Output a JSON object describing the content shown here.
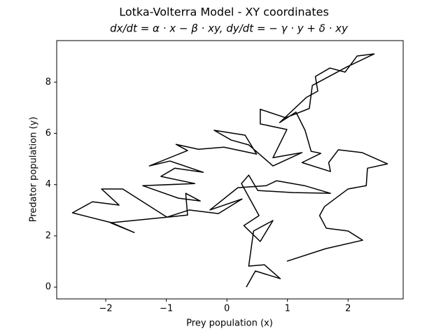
{
  "chart_data": {
    "type": "line",
    "title": "Lotka-Volterra Model - XY coordinates",
    "subtitle": "dx/dt = α · x − β · xy,      dy/dt = − γ · y + δ · xy",
    "x_label": "Prey population (x)",
    "y_label": "Predator population (y)",
    "color": "#000000",
    "x": [
      0.99,
      1.63,
      2.24,
      2.0,
      1.64,
      1.53,
      1.61,
      2.0,
      2.3,
      2.32,
      2.65,
      2.23,
      1.84,
      1.68,
      1.71,
      1.24,
      1.55,
      1.39,
      1.29,
      1.14,
      0.87,
      1.31,
      1.5,
      1.46,
      1.7,
      1.95,
      2.15,
      2.43,
      1.97,
      1.41,
      1.36,
      0.97,
      0.55,
      0.55,
      0.99,
      0.76,
      1.24,
      0.76,
      0.36,
      0.07,
      -0.21,
      0.3,
      0.49,
      -0.05,
      -0.47,
      -0.84,
      -0.65,
      -1.28,
      -0.94,
      -0.39,
      -0.86,
      -1.09,
      -0.53,
      -1.39,
      -0.8,
      -0.44,
      -0.68,
      -0.65,
      -0.99,
      -1.72,
      -2.07,
      -1.78,
      -2.22,
      -2.55,
      -1.9,
      -1.53,
      -1.92,
      -0.99,
      -0.62,
      -0.14,
      0.25,
      -0.28,
      0.18,
      0.65,
      0.82,
      1.28,
      1.71,
      1.09,
      0.51,
      0.36,
      0.24,
      0.53,
      0.28,
      0.55,
      0.76,
      0.44,
      0.36,
      0.62,
      0.88,
      0.47,
      0.32
    ],
    "values": [
      1.01,
      1.5,
      1.83,
      2.19,
      2.3,
      2.79,
      3.14,
      3.83,
      3.96,
      4.64,
      4.81,
      5.25,
      5.36,
      4.86,
      4.51,
      4.86,
      5.22,
      5.3,
      6.12,
      6.83,
      6.42,
      7.4,
      7.65,
      8.22,
      8.55,
      8.39,
      9.02,
      9.1,
      8.58,
      7.87,
      6.97,
      6.61,
      6.94,
      6.37,
      6.15,
      5.05,
      5.25,
      4.73,
      5.55,
      5.74,
      6.12,
      5.93,
      5.19,
      5.46,
      5.38,
      5.57,
      5.33,
      4.73,
      4.92,
      4.48,
      4.64,
      4.32,
      4.04,
      3.96,
      3.47,
      3.36,
      3.66,
      2.81,
      2.73,
      3.83,
      3.83,
      3.2,
      3.33,
      2.9,
      2.51,
      2.13,
      2.51,
      2.73,
      3.01,
      2.87,
      3.44,
      3.01,
      3.88,
      3.96,
      4.15,
      3.96,
      3.66,
      3.69,
      3.77,
      4.37,
      4.04,
      2.79,
      2.4,
      1.78,
      2.6,
      2.19,
      0.82,
      0.87,
      0.33,
      0.63,
      0.0
    ],
    "xlim": [
      -2.81,
      2.91
    ],
    "ylim": [
      -0.46,
      9.62
    ],
    "xticks": [
      {
        "value": -2,
        "label": "−2"
      },
      {
        "value": -1,
        "label": "−1"
      },
      0,
      1,
      2
    ],
    "yticks": [
      0,
      2,
      4,
      6,
      8
    ],
    "grid": false
  }
}
